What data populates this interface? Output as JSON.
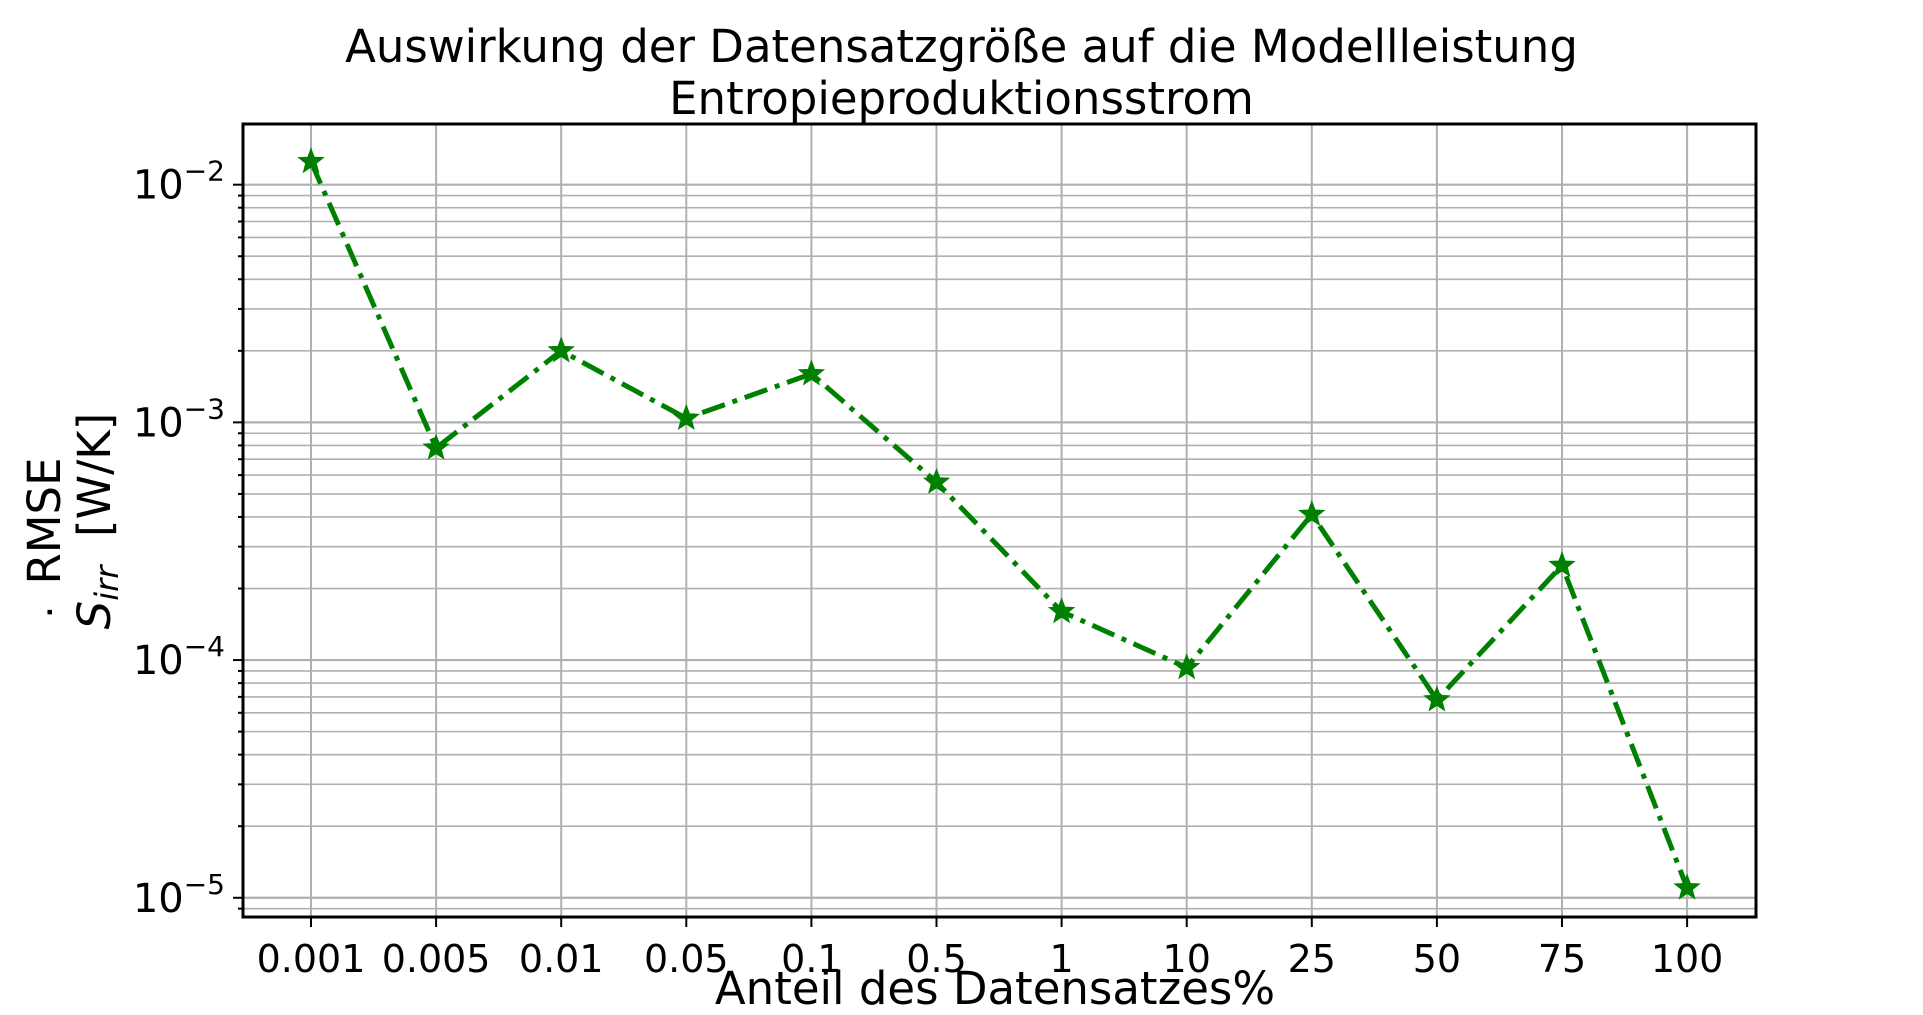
{
  "chart_data": {
    "type": "line",
    "title": "Auswirkung der Datensatzgröße auf die Modellleistung",
    "subtitle": "Entropieproduktionsstrom",
    "xlabel": "Anteil des Datensatzes%",
    "ylabel_line1": "RMSE",
    "ylabel_symbol": "S",
    "ylabel_subscript": "irr",
    "ylabel_unit": "[W/K]",
    "categories": [
      "0.001",
      "0.005",
      "0.01",
      "0.05",
      "0.1",
      "0.5",
      "1",
      "10",
      "25",
      "50",
      "75",
      "100"
    ],
    "series": [
      {
        "values": [
          0.0125,
          0.00078,
          0.002,
          0.00104,
          0.0016,
          0.00056,
          0.00016,
          9.3e-05,
          0.00041,
          6.8e-05,
          0.00025,
          1.1e-05
        ]
      }
    ],
    "y_scale": "log",
    "ylim": [
      8.3e-06,
      0.018
    ],
    "yticks": [
      {
        "base": "10",
        "exp": "−2",
        "value": 0.01
      },
      {
        "base": "10",
        "exp": "−3",
        "value": 0.001
      },
      {
        "base": "10",
        "exp": "−4",
        "value": 0.0001
      },
      {
        "base": "10",
        "exp": "−5",
        "value": 1e-05
      }
    ],
    "grid": true,
    "minor_grid": true,
    "marker": "star",
    "line_style": "dash-dot",
    "color": "#008000"
  }
}
